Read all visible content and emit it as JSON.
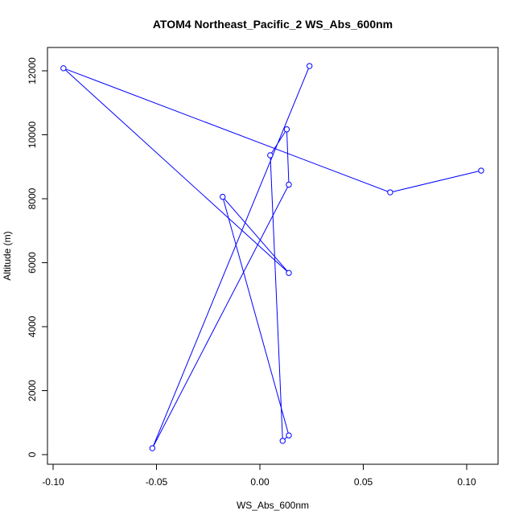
{
  "chart_data": {
    "type": "line",
    "title": "ATOM4 Northeast_Pacific_2 WS_Abs_600nm",
    "xlabel": "WS_Abs_600nm",
    "ylabel": "Altitude (m)",
    "xlim": [
      -0.1,
      0.1
    ],
    "ylim": [
      0,
      12000
    ],
    "x_ticks": [
      -0.1,
      -0.05,
      0.0,
      0.05,
      0.1
    ],
    "x_tick_labels": [
      "-0.10",
      "-0.05",
      "0.00",
      "0.05",
      "0.10"
    ],
    "y_ticks": [
      0,
      2000,
      4000,
      6000,
      8000,
      10000,
      12000
    ],
    "y_tick_labels": [
      "0",
      "2000",
      "4000",
      "6000",
      "8000",
      "10000",
      "12000"
    ],
    "grid": false,
    "line_color": "#0000ff",
    "marker": "open-circle",
    "series": [
      {
        "x": [
          0.107,
          0.063,
          -0.095,
          0.014,
          -0.018,
          0.014,
          0.011,
          0.005,
          0.013,
          0.014,
          -0.052,
          0.024
        ],
        "y": [
          8880,
          8200,
          12080,
          5680,
          8060,
          600,
          430,
          9360,
          10170,
          8440,
          200,
          12150
        ]
      }
    ]
  }
}
